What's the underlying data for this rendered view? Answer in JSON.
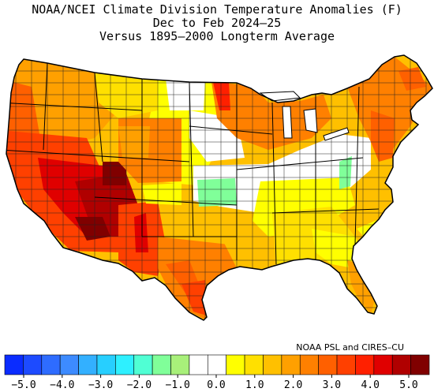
{
  "title": {
    "line1": "NOAA/NCEI Climate Division Temperature Anomalies (F)",
    "line2": "Dec to Feb 2024–25",
    "line3": "Versus 1895–2000 Longterm Average"
  },
  "credit": "NOAA PSL and CIRES–CU",
  "colorbar": {
    "colors": [
      "#0a2cff",
      "#1d4bff",
      "#2e6cff",
      "#3d8bff",
      "#33b0ff",
      "#27cfff",
      "#2ef0ff",
      "#50ffd4",
      "#80ff99",
      "#a8f07a",
      "#ffffff",
      "#ffffff",
      "#ffff00",
      "#ffe000",
      "#ffc000",
      "#ffa000",
      "#ff8000",
      "#ff6000",
      "#ff4000",
      "#ff2000",
      "#e00000",
      "#b00000",
      "#800000"
    ],
    "tick_labels": [
      "−5.0",
      "−4.0",
      "−3.0",
      "−2.0",
      "−1.0",
      "0.0",
      "1.0",
      "2.0",
      "3.0",
      "4.0",
      "5.0"
    ]
  },
  "legend_colors": {
    "outline": "#000000",
    "state_lines": "#000000",
    "division_lines": "#222222"
  }
}
